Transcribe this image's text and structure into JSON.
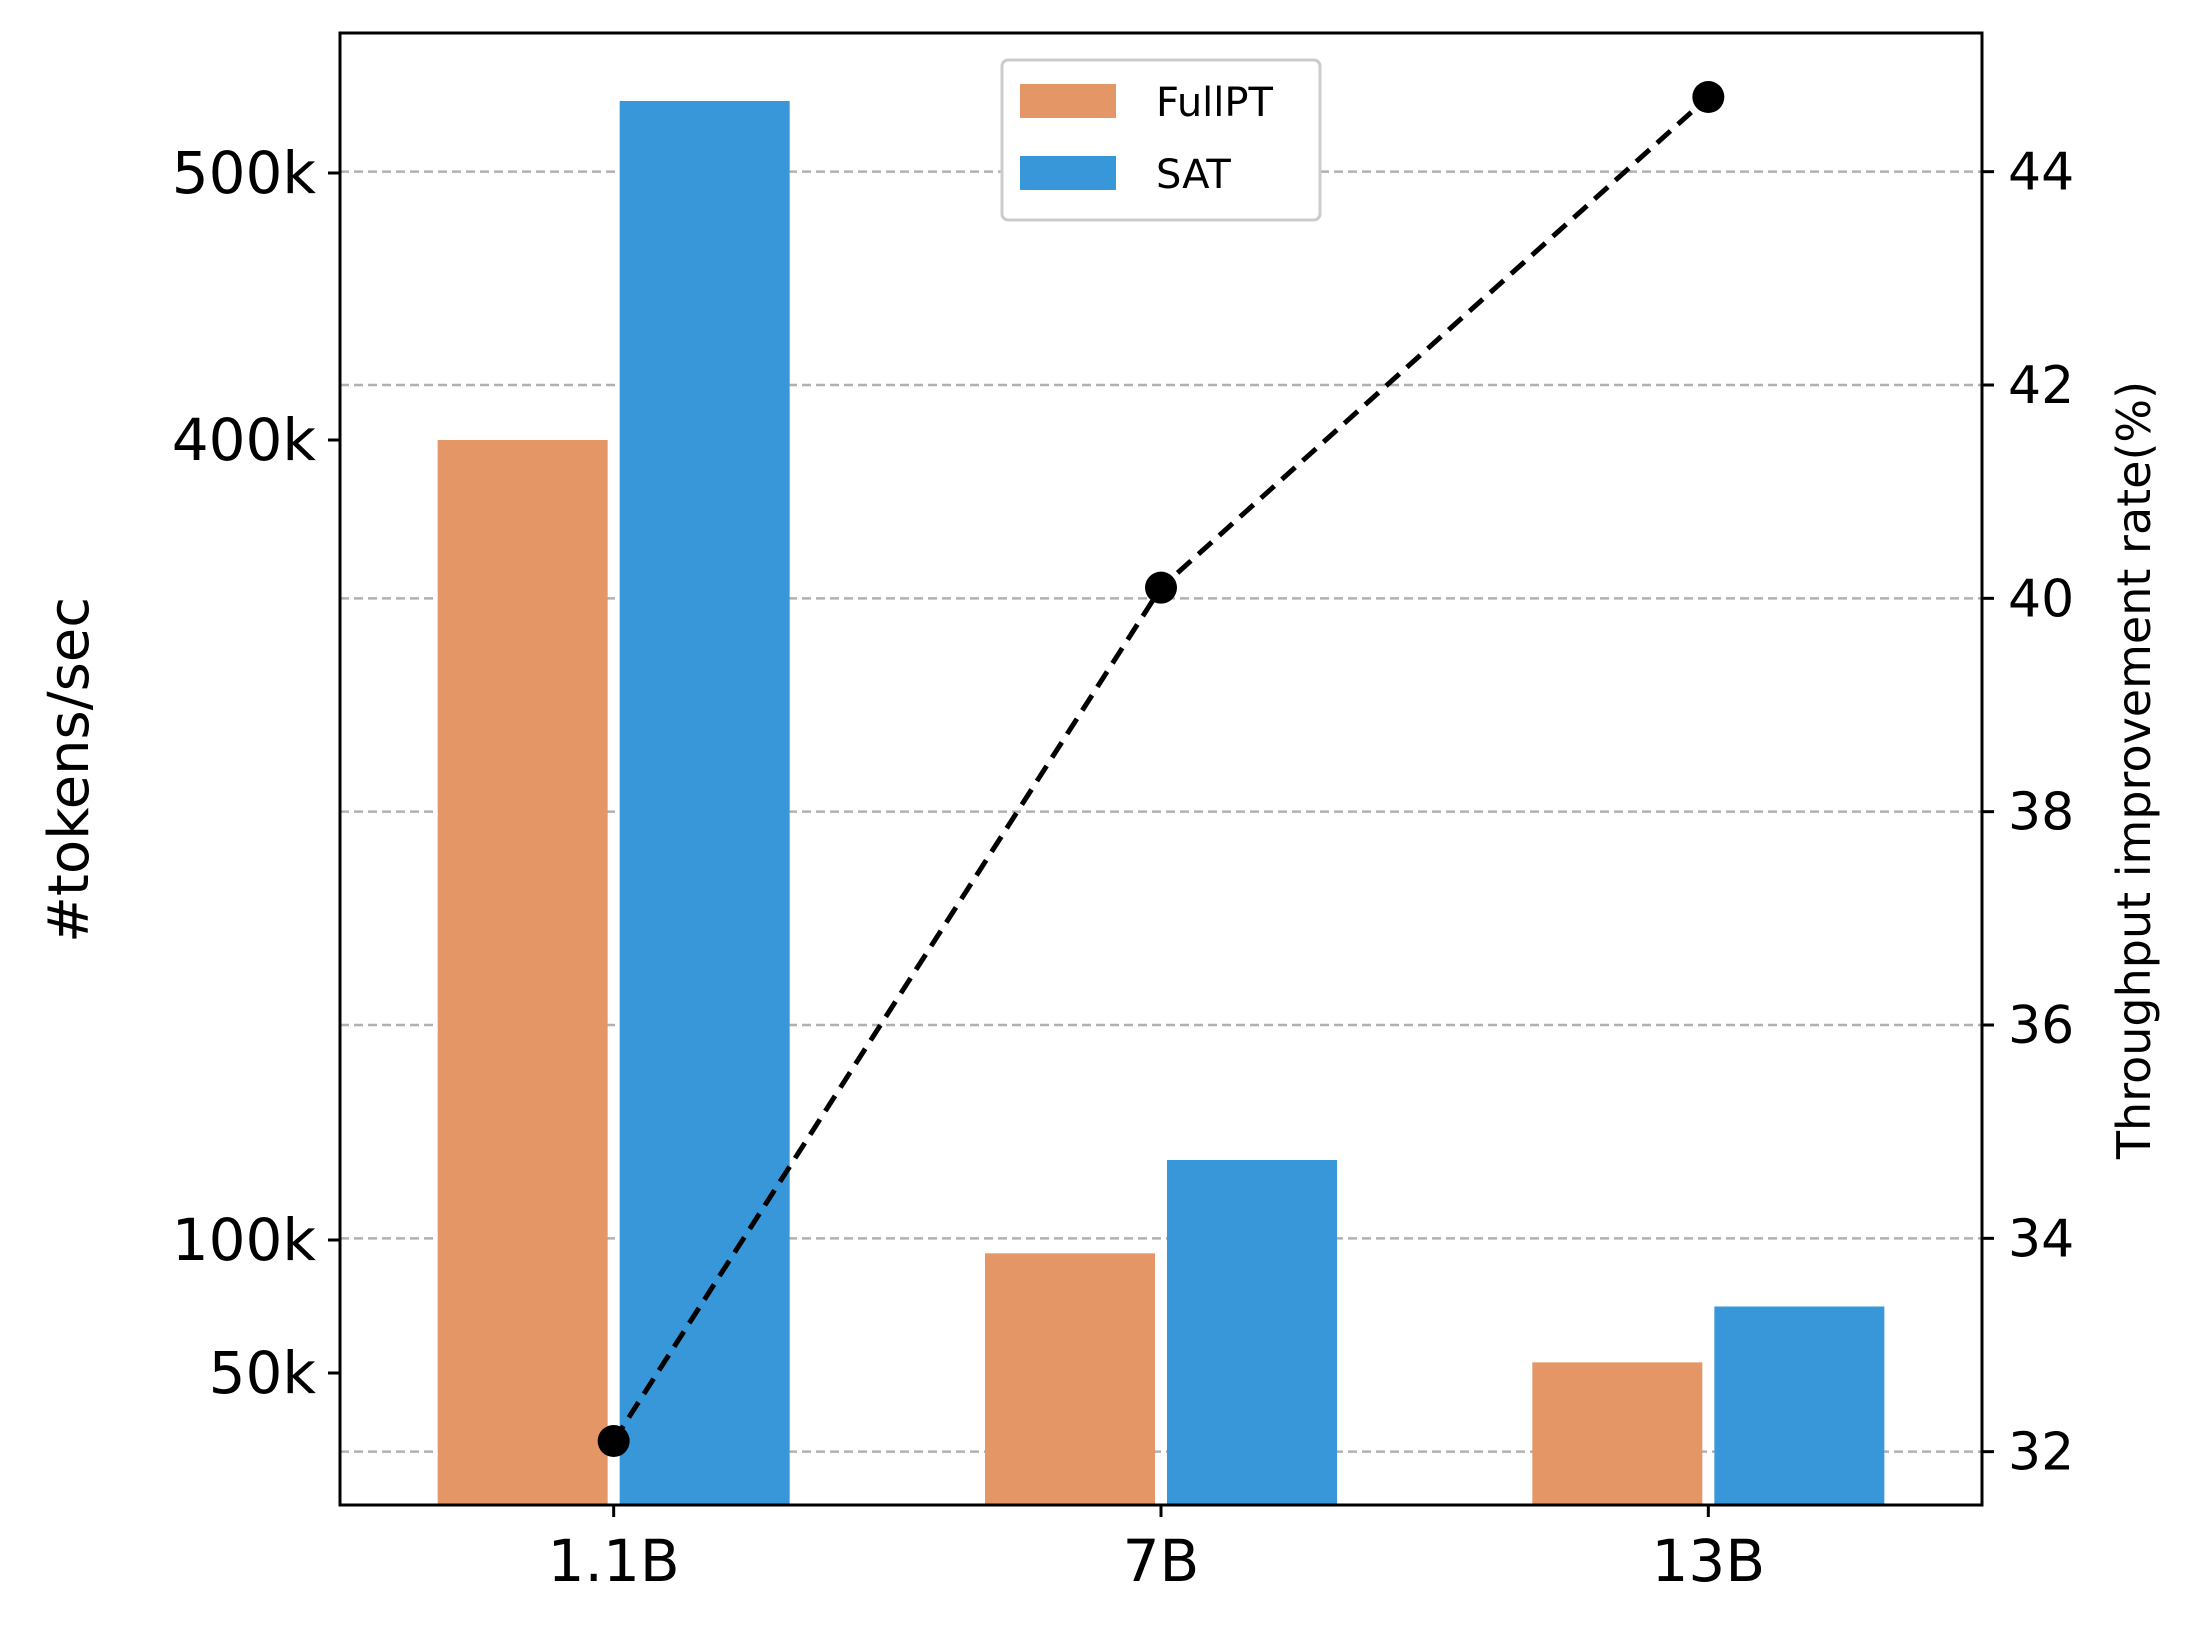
{
  "chart_data": {
    "type": "bar",
    "categories": [
      "1.1B",
      "7B",
      "13B"
    ],
    "series": [
      {
        "name": "FullPT",
        "values": [
          400000,
          95000,
          54000
        ],
        "color": "#E59667"
      },
      {
        "name": "SAT",
        "values": [
          527000,
          130000,
          75000
        ],
        "color": "#3797D9"
      }
    ],
    "line_series": {
      "axis": "right",
      "style": "dashed",
      "color": "#000000",
      "values": [
        32.1,
        40.1,
        44.7
      ]
    },
    "xlabel": "",
    "ylabel": "#tokens/sec",
    "y2label": "Throughput improvement rate(%)",
    "ylim": [
      0,
      560000
    ],
    "y2lim": [
      31.5,
      45.3
    ],
    "yticks": [
      {
        "value": 50000,
        "label": "50k"
      },
      {
        "value": 100000,
        "label": "100k"
      },
      {
        "value": 400000,
        "label": "400k"
      },
      {
        "value": 500000,
        "label": "500k"
      }
    ],
    "y2ticks": [
      {
        "value": 32,
        "label": "32"
      },
      {
        "value": 34,
        "label": "34"
      },
      {
        "value": 36,
        "label": "36"
      },
      {
        "value": 38,
        "label": "38"
      },
      {
        "value": 40,
        "label": "40"
      },
      {
        "value": 42,
        "label": "42"
      },
      {
        "value": 44,
        "label": "44"
      }
    ],
    "grid": "horizontal dashed on right-axis ticks",
    "legend": {
      "placement": "top-center",
      "entries": [
        "FullPT",
        "SAT"
      ]
    }
  }
}
